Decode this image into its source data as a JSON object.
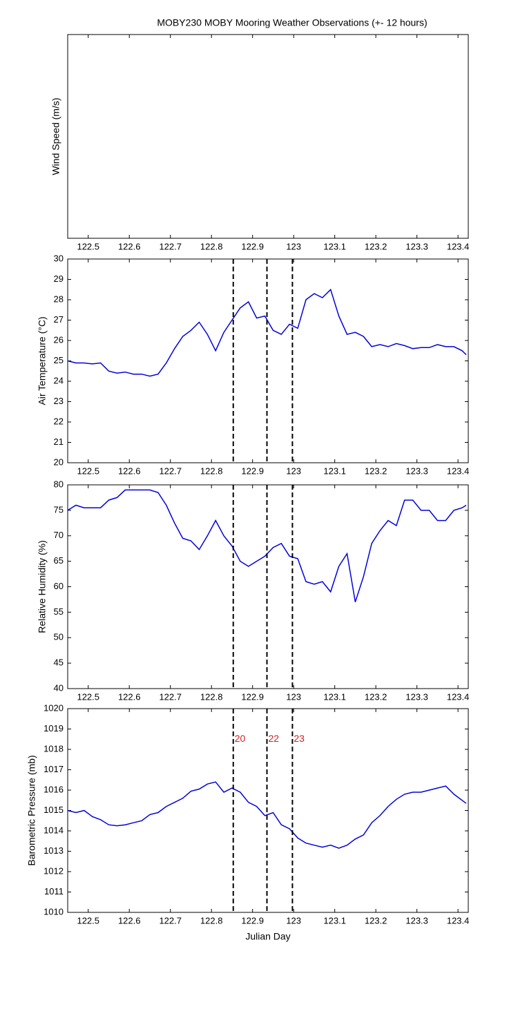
{
  "chart_data": [
    {
      "type": "line",
      "title": "MOBY230 MOBY Mooring Weather Observations (+- 12 hours)",
      "y_label": "Wind Speed (m/s)",
      "xlim": [
        122.45,
        123.425
      ],
      "xticks": [
        122.5,
        122.6,
        122.7,
        122.8,
        122.9,
        123,
        123.1,
        123.2,
        123.3,
        123.4
      ]
    },
    {
      "type": "line",
      "y_label": "Air Temperature (°C)",
      "color": "#0000dd",
      "xlim": [
        122.45,
        123.425
      ],
      "xticks": [
        122.5,
        122.6,
        122.7,
        122.8,
        122.9,
        123,
        123.1,
        123.2,
        123.3,
        123.4
      ],
      "ylim": [
        20,
        30
      ],
      "yticks": [
        20,
        21,
        22,
        23,
        24,
        25,
        26,
        27,
        28,
        29,
        30
      ],
      "vlines": [
        122.853,
        122.935,
        122.997
      ],
      "x": [
        122.45,
        122.47,
        122.49,
        122.51,
        122.53,
        122.55,
        122.57,
        122.59,
        122.61,
        122.63,
        122.65,
        122.67,
        122.69,
        122.71,
        122.73,
        122.75,
        122.77,
        122.79,
        122.81,
        122.83,
        122.85,
        122.87,
        122.89,
        122.91,
        122.93,
        122.95,
        122.97,
        122.99,
        123.01,
        123.03,
        123.05,
        123.07,
        123.09,
        123.11,
        123.13,
        123.15,
        123.17,
        123.19,
        123.21,
        123.23,
        123.25,
        123.27,
        123.29,
        123.31,
        123.33,
        123.35,
        123.37,
        123.39,
        123.41,
        123.42
      ],
      "values": [
        25.0,
        24.9,
        24.9,
        24.85,
        24.9,
        24.5,
        24.4,
        24.45,
        24.35,
        24.35,
        24.25,
        24.35,
        24.9,
        25.6,
        26.2,
        26.5,
        26.9,
        26.3,
        25.5,
        26.4,
        27.0,
        27.6,
        27.9,
        27.1,
        27.2,
        26.5,
        26.3,
        26.8,
        26.6,
        28.0,
        28.3,
        28.1,
        28.5,
        27.2,
        26.3,
        26.4,
        26.2,
        25.7,
        25.8,
        25.7,
        25.85,
        25.75,
        25.6,
        25.65,
        25.65,
        25.8,
        25.7,
        25.7,
        25.5,
        25.3
      ]
    },
    {
      "type": "line",
      "y_label": "Relative Humidity (%)",
      "color": "#0000dd",
      "xlim": [
        122.45,
        123.425
      ],
      "xticks": [
        122.5,
        122.6,
        122.7,
        122.8,
        122.9,
        123,
        123.1,
        123.2,
        123.3,
        123.4
      ],
      "ylim": [
        40,
        80
      ],
      "yticks": [
        40,
        45,
        50,
        55,
        60,
        65,
        70,
        75,
        80
      ],
      "vlines": [
        122.853,
        122.935,
        122.997
      ],
      "x": [
        122.45,
        122.47,
        122.49,
        122.51,
        122.53,
        122.55,
        122.57,
        122.59,
        122.61,
        122.63,
        122.65,
        122.67,
        122.69,
        122.71,
        122.73,
        122.75,
        122.77,
        122.79,
        122.81,
        122.83,
        122.85,
        122.87,
        122.89,
        122.91,
        122.93,
        122.95,
        122.97,
        122.99,
        123.01,
        123.03,
        123.05,
        123.07,
        123.09,
        123.11,
        123.13,
        123.15,
        123.17,
        123.19,
        123.21,
        123.23,
        123.25,
        123.27,
        123.29,
        123.31,
        123.33,
        123.35,
        123.37,
        123.39,
        123.41,
        123.42
      ],
      "values": [
        75,
        76,
        75.5,
        75.5,
        75.5,
        77,
        77.5,
        79,
        79,
        79,
        79,
        78.5,
        76,
        72.5,
        69.5,
        69,
        67.3,
        70,
        73,
        70,
        68,
        65,
        64,
        65,
        66,
        67.7,
        68.5,
        66,
        65.5,
        61,
        60.5,
        61,
        59,
        64,
        66.5,
        57,
        62,
        68.5,
        71,
        73,
        72,
        77,
        77,
        75,
        75,
        73,
        73,
        75,
        75.5,
        76
      ]
    },
    {
      "type": "line",
      "y_label": "Barometric Pressure (mb)",
      "x_label": "Julian Day",
      "color": "#0000dd",
      "xlim": [
        122.45,
        123.425
      ],
      "xticks": [
        122.5,
        122.6,
        122.7,
        122.8,
        122.9,
        123,
        123.1,
        123.2,
        123.3,
        123.4
      ],
      "ylim": [
        1010,
        1020
      ],
      "yticks": [
        1010,
        1011,
        1012,
        1013,
        1014,
        1015,
        1016,
        1017,
        1018,
        1019,
        1020
      ],
      "vlines": [
        122.853,
        122.935,
        122.997
      ],
      "annotation_color": "#cc2222",
      "annotations": [
        {
          "x": 122.853,
          "y": 1018.5,
          "text": "20"
        },
        {
          "x": 122.935,
          "y": 1018.5,
          "text": "22"
        },
        {
          "x": 122.997,
          "y": 1018.5,
          "text": "23"
        }
      ],
      "x": [
        122.45,
        122.47,
        122.49,
        122.51,
        122.53,
        122.55,
        122.57,
        122.59,
        122.61,
        122.63,
        122.65,
        122.67,
        122.69,
        122.71,
        122.73,
        122.75,
        122.77,
        122.79,
        122.81,
        122.83,
        122.85,
        122.87,
        122.89,
        122.91,
        122.93,
        122.95,
        122.97,
        122.99,
        123.01,
        123.03,
        123.05,
        123.07,
        123.09,
        123.11,
        123.13,
        123.15,
        123.17,
        123.19,
        123.21,
        123.23,
        123.25,
        123.27,
        123.29,
        123.31,
        123.33,
        123.35,
        123.37,
        123.39,
        123.41,
        123.42
      ],
      "values": [
        1015.0,
        1014.9,
        1015.0,
        1014.7,
        1014.55,
        1014.3,
        1014.25,
        1014.3,
        1014.4,
        1014.5,
        1014.8,
        1014.9,
        1015.2,
        1015.4,
        1015.6,
        1015.95,
        1016.05,
        1016.3,
        1016.4,
        1015.9,
        1016.1,
        1015.9,
        1015.4,
        1015.2,
        1014.75,
        1014.9,
        1014.3,
        1014.1,
        1013.65,
        1013.4,
        1013.3,
        1013.2,
        1013.3,
        1013.15,
        1013.3,
        1013.6,
        1013.8,
        1014.4,
        1014.75,
        1015.2,
        1015.55,
        1015.8,
        1015.9,
        1015.9,
        1016.0,
        1016.1,
        1016.2,
        1015.8,
        1015.5,
        1015.35
      ]
    }
  ]
}
